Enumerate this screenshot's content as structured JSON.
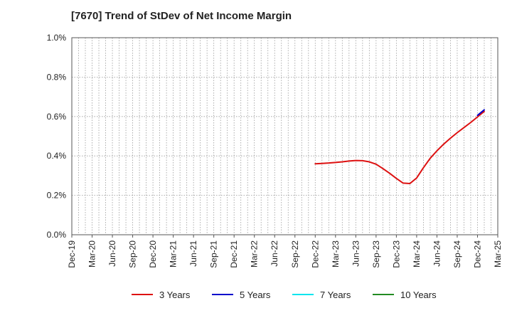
{
  "chart_data": {
    "type": "line",
    "title": "[7670]  Trend of StDev of Net Income Margin",
    "xlabel": "",
    "ylabel": "",
    "ylim": [
      0,
      1.0
    ],
    "y_ticks": [
      {
        "value": 0.0,
        "label": "0.0%"
      },
      {
        "value": 0.2,
        "label": "0.2%"
      },
      {
        "value": 0.4,
        "label": "0.4%"
      },
      {
        "value": 0.6,
        "label": "0.6%"
      },
      {
        "value": 0.8,
        "label": "0.8%"
      },
      {
        "value": 1.0,
        "label": "1.0%"
      }
    ],
    "x_ticks": [
      "Dec-19",
      "Mar-20",
      "Jun-20",
      "Sep-20",
      "Dec-20",
      "Mar-21",
      "Jun-21",
      "Sep-21",
      "Dec-21",
      "Mar-22",
      "Jun-22",
      "Sep-22",
      "Dec-22",
      "Mar-23",
      "Jun-23",
      "Sep-23",
      "Dec-23",
      "Mar-24",
      "Jun-24",
      "Sep-24",
      "Dec-24",
      "Mar-25"
    ],
    "grid": true,
    "legend_position": "bottom",
    "series": [
      {
        "name": "3 Years",
        "color": "#dd1111",
        "points": [
          {
            "x": 36,
            "y": 0.36
          },
          {
            "x": 37,
            "y": 0.362
          },
          {
            "x": 38,
            "y": 0.364
          },
          {
            "x": 39,
            "y": 0.367
          },
          {
            "x": 40,
            "y": 0.37
          },
          {
            "x": 41,
            "y": 0.374
          },
          {
            "x": 42,
            "y": 0.377
          },
          {
            "x": 43,
            "y": 0.376
          },
          {
            "x": 44,
            "y": 0.37
          },
          {
            "x": 45,
            "y": 0.358
          },
          {
            "x": 46,
            "y": 0.336
          },
          {
            "x": 47,
            "y": 0.312
          },
          {
            "x": 48,
            "y": 0.286
          },
          {
            "x": 49,
            "y": 0.262
          },
          {
            "x": 50,
            "y": 0.26
          },
          {
            "x": 51,
            "y": 0.288
          },
          {
            "x": 52,
            "y": 0.34
          },
          {
            "x": 53,
            "y": 0.388
          },
          {
            "x": 54,
            "y": 0.426
          },
          {
            "x": 55,
            "y": 0.46
          },
          {
            "x": 56,
            "y": 0.49
          },
          {
            "x": 57,
            "y": 0.518
          },
          {
            "x": 58,
            "y": 0.544
          },
          {
            "x": 59,
            "y": 0.57
          },
          {
            "x": 60,
            "y": 0.598
          },
          {
            "x": 61,
            "y": 0.626
          }
        ]
      },
      {
        "name": "5 Years",
        "color": "#0000cc",
        "points": [
          {
            "x": 60,
            "y": 0.606
          },
          {
            "x": 61,
            "y": 0.634
          }
        ]
      },
      {
        "name": "7 Years",
        "color": "#00e5ee",
        "points": []
      },
      {
        "name": "10 Years",
        "color": "#228b22",
        "points": []
      }
    ]
  }
}
